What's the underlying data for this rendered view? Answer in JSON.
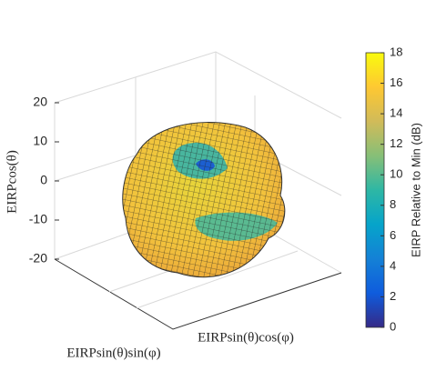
{
  "chart_data": {
    "type": "surface",
    "xlabel": "EIRPsin(θ)cos(φ)",
    "ylabel": "EIRPsin(θ)sin(φ)",
    "zlabel": "EIRPcos(θ)",
    "zlim": [
      -20,
      20
    ],
    "zticks": [
      -20,
      -10,
      0,
      10,
      20
    ],
    "grid": true,
    "colorbar": {
      "label": "EIRP Relative to Min (dB)",
      "lim": [
        0,
        18
      ],
      "ticks": [
        0,
        2,
        4,
        6,
        8,
        10,
        12,
        14,
        16,
        18
      ],
      "colors": [
        "#352a87",
        "#0f5cdd",
        "#1481d6",
        "#06a4ca",
        "#2eb7a4",
        "#87bf77",
        "#d1bb59",
        "#fec832",
        "#f9fb0e"
      ]
    }
  }
}
